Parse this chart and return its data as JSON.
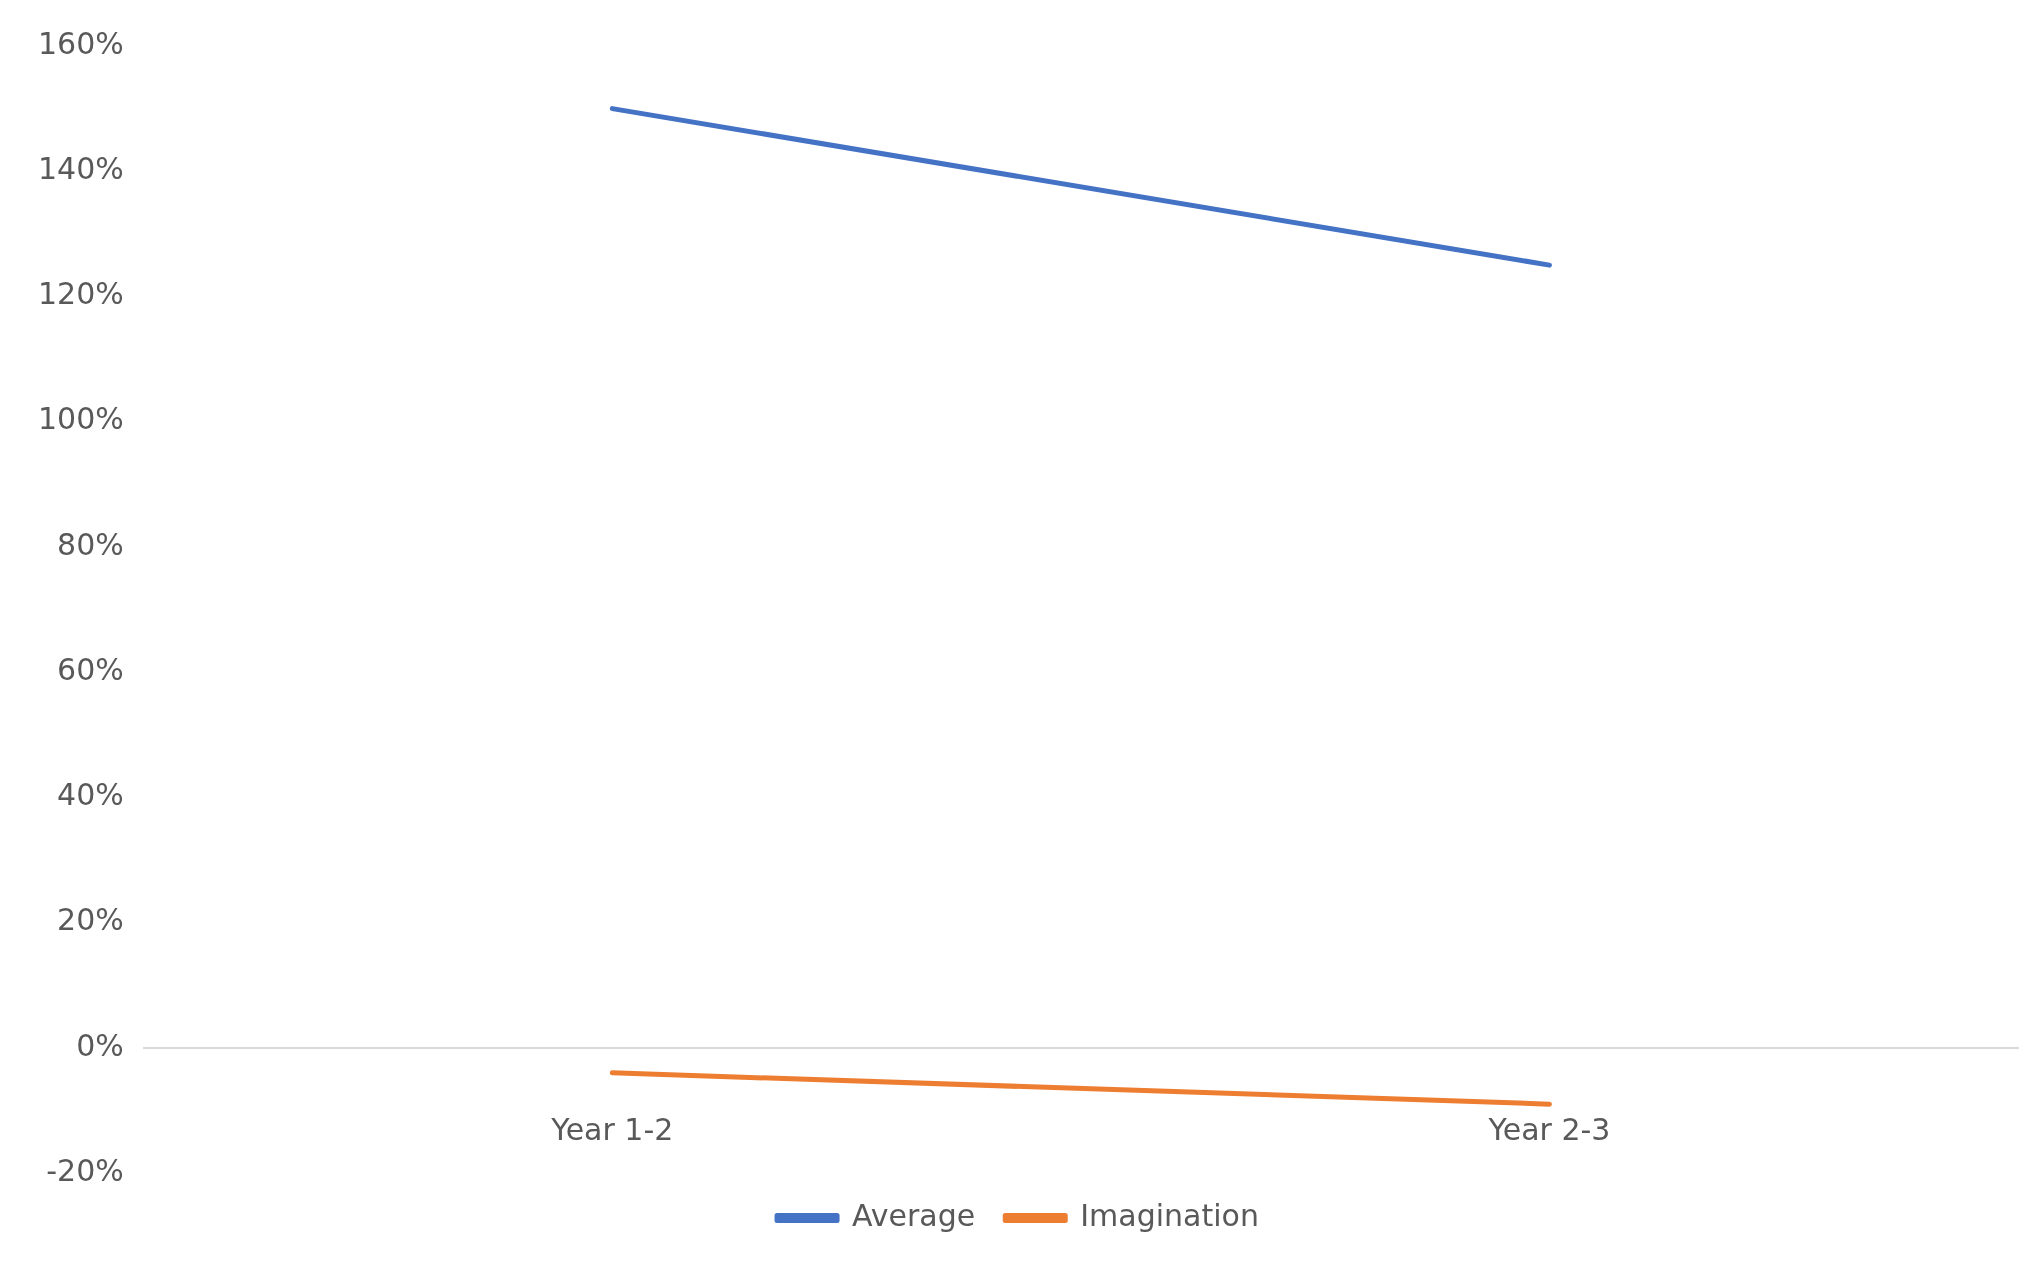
{
  "chart_data": {
    "type": "line",
    "categories": [
      "Year 1-2",
      "Year 2-3"
    ],
    "series": [
      {
        "name": "Average",
        "color": "#4472c4",
        "values": [
          150,
          125
        ]
      },
      {
        "name": "Imagination",
        "color": "#ed7d31",
        "values": [
          -4,
          -9
        ]
      }
    ],
    "ylim": [
      -20,
      160
    ],
    "yticks": [
      {
        "value": -20,
        "label": "-20%"
      },
      {
        "value": 0,
        "label": "0%"
      },
      {
        "value": 20,
        "label": "20%"
      },
      {
        "value": 40,
        "label": "40%"
      },
      {
        "value": 60,
        "label": "60%"
      },
      {
        "value": 80,
        "label": "80%"
      },
      {
        "value": 100,
        "label": "100%"
      },
      {
        "value": 120,
        "label": "120%"
      },
      {
        "value": 140,
        "label": "140%"
      },
      {
        "value": 160,
        "label": "160%"
      }
    ],
    "grid": false,
    "legend": "bottom",
    "marker": "none",
    "line_style": "solid"
  }
}
